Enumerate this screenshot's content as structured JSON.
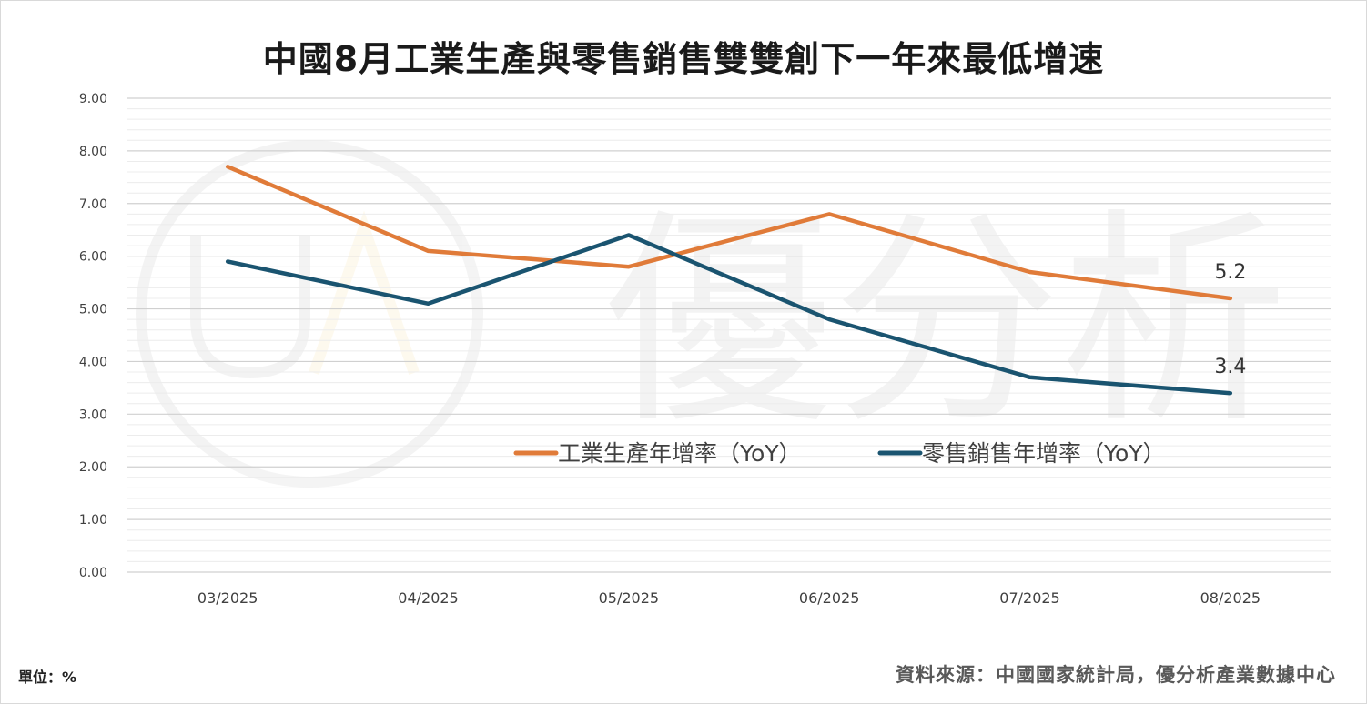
{
  "title": "中國8月工業生產與零售銷售雙雙創下一年來最低增速",
  "unit_label": "單位：%",
  "source_label": "資料來源：中國國家統計局，優分析產業數據中心",
  "watermark": "優分析",
  "colors": {
    "industrial": "#e07b39",
    "retail": "#1a5470",
    "gridline": "#d9d9d9",
    "axis_text": "#404040"
  },
  "chart_data": {
    "type": "line",
    "categories": [
      "03/2025",
      "04/2025",
      "05/2025",
      "06/2025",
      "07/2025",
      "08/2025"
    ],
    "series": [
      {
        "name": "工業生產年增率（YoY）",
        "values": [
          7.7,
          6.1,
          5.8,
          6.8,
          5.7,
          5.2
        ]
      },
      {
        "name": "零售銷售年增率（YoY）",
        "values": [
          5.9,
          5.1,
          6.4,
          4.8,
          3.7,
          3.4
        ]
      }
    ],
    "y_ticks": [
      "0.00",
      "1.00",
      "2.00",
      "3.00",
      "4.00",
      "5.00",
      "6.00",
      "7.00",
      "8.00",
      "9.00"
    ],
    "ylim": [
      0,
      9
    ],
    "end_labels": [
      "5.2",
      "3.4"
    ],
    "legend_position": "inside-bottom-right",
    "grid": true
  }
}
